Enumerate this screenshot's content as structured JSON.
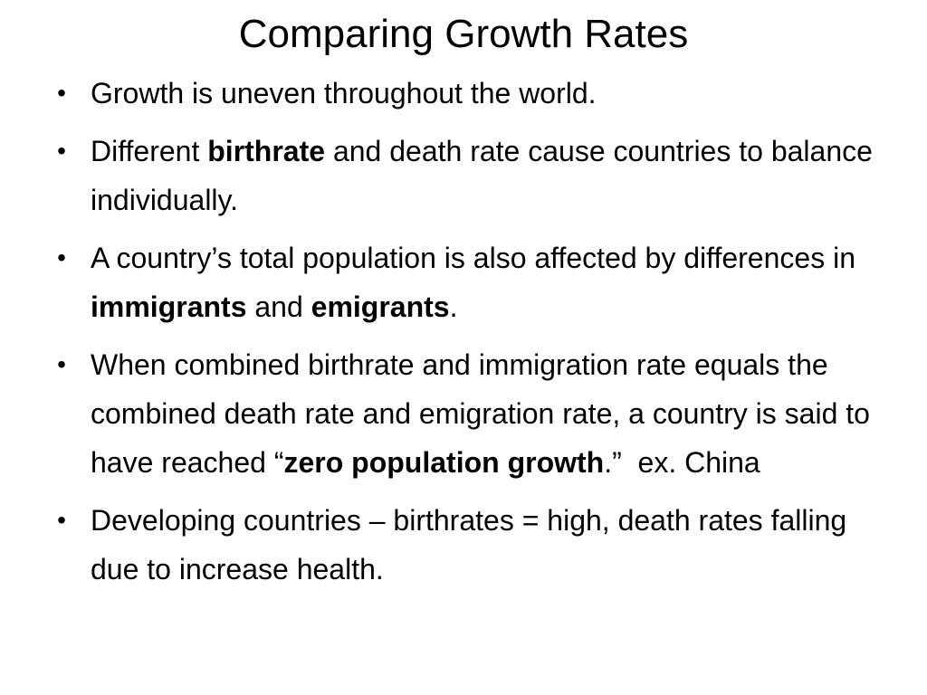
{
  "slide": {
    "title": "Comparing Growth Rates",
    "bullet_glyph": "•",
    "bullets": [
      {
        "parts": [
          {
            "text": "Growth is uneven throughout the world."
          }
        ]
      },
      {
        "parts": [
          {
            "text": "Different "
          },
          {
            "text": "birthrate",
            "bold": true
          },
          {
            "text": " and death rate cause countries to balance individually."
          }
        ]
      },
      {
        "parts": [
          {
            "text": "A country’s total population is also affected by differences in "
          },
          {
            "text": "immigrants",
            "bold": true
          },
          {
            "text": " and "
          },
          {
            "text": "emigrants",
            "bold": true
          },
          {
            "text": "."
          }
        ]
      },
      {
        "parts": [
          {
            "text": "When combined birthrate and immigration rate equals the combined death rate and emigration rate, a country is said to have reached “"
          },
          {
            "text": "zero population growth",
            "bold": true
          },
          {
            "text": ".”  ex. China"
          }
        ]
      },
      {
        "parts": [
          {
            "text": "Developing countries – birthrates = high, death rates falling due to increase health."
          }
        ]
      }
    ]
  }
}
